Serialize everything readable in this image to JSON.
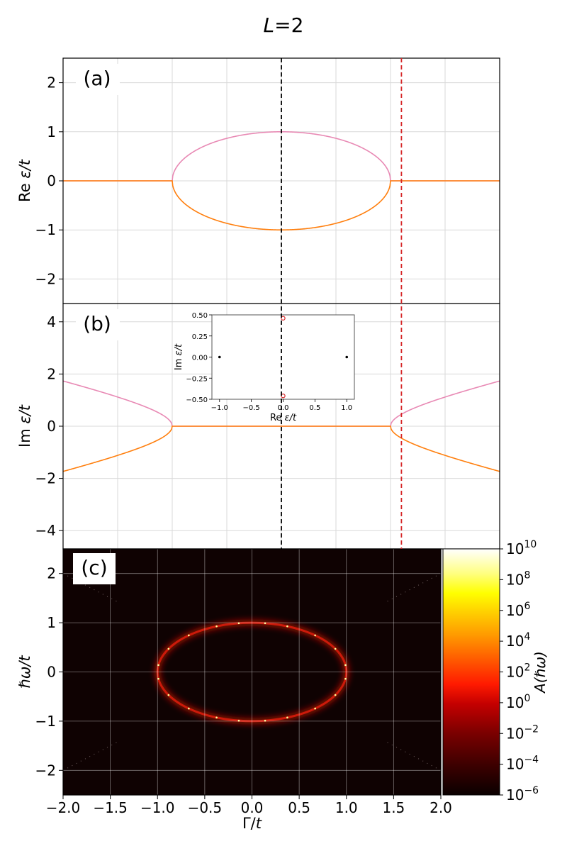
{
  "figure": {
    "suptitle": "L=2"
  },
  "colors": {
    "upper_branch": "#e889b4",
    "lower_branch": "#ff7f0e",
    "vline_black": "#000000",
    "vline_red": "#d62728",
    "grid": "#d9d9d9",
    "heatmap_bg": "#0f0202",
    "heatmap_ring": "#cc1a0a",
    "heatmap_peak": "#ffff99",
    "inset_black_points": "#000000",
    "inset_red_points": "#d62728"
  },
  "chart_data": [
    {
      "id": "a",
      "type": "line",
      "panel_label": "(a)",
      "xlabel": "",
      "ylabel": "Re ε/t",
      "xlim": [
        -2,
        2
      ],
      "ylim": [
        -2.5,
        2.5
      ],
      "y_ticks": [
        -2,
        -1,
        0,
        1,
        2
      ],
      "grid": true,
      "x_gridlines": [
        -1.5,
        -1.0,
        -0.5,
        0.0,
        0.5,
        1.0,
        1.5
      ],
      "exceptional_points": [
        -1,
        1
      ],
      "vlines": [
        {
          "x": 0.0,
          "style": "dashed",
          "color": "black"
        },
        {
          "x": 1.1,
          "style": "dashed",
          "color": "red"
        }
      ],
      "series": [
        {
          "formula": "Re(+sqrt(1-Γ²))",
          "color": "upper_branch"
        },
        {
          "formula": "Re(-sqrt(1-Γ²))",
          "color": "lower_branch"
        }
      ]
    },
    {
      "id": "b",
      "type": "line",
      "panel_label": "(b)",
      "xlabel": "",
      "ylabel": "Im ε/t",
      "xlim": [
        -2,
        2
      ],
      "ylim": [
        -4.7,
        4.7
      ],
      "y_ticks": [
        -4,
        -2,
        0,
        2,
        4
      ],
      "grid": true,
      "vlines": [
        {
          "x": 0.0,
          "style": "dashed",
          "color": "black"
        },
        {
          "x": 1.1,
          "style": "dashed",
          "color": "red"
        }
      ],
      "series": [
        {
          "formula": "Im(+sqrt(1-Γ²))",
          "color": "upper_branch"
        },
        {
          "formula": "Im(-sqrt(1-Γ²))",
          "color": "lower_branch"
        }
      ],
      "inset": {
        "type": "scatter",
        "xlabel": "Re ε/t",
        "ylabel": "Im ε/t",
        "xlim": [
          -1.12,
          1.12
        ],
        "ylim": [
          -0.5,
          0.5
        ],
        "x_ticks": [
          -1.0,
          -0.5,
          0.0,
          0.5,
          1.0
        ],
        "x_tick_labels": [
          "−1.0",
          "−0.5",
          "0.0",
          "0.5",
          "1.0"
        ],
        "y_ticks": [
          0.5,
          0.25,
          0.0,
          -0.25,
          -0.5
        ],
        "y_tick_labels": [
          "0.50",
          "0.25",
          "0.00",
          "−0.25",
          "−0.50"
        ],
        "series": [
          {
            "points": [
              [
                -1.0,
                0.0
              ],
              [
                1.0,
                0.0
              ]
            ],
            "marker": "filled",
            "color": "inset_black_points"
          },
          {
            "points": [
              [
                0.0,
                0.46
              ],
              [
                0.0,
                -0.46
              ]
            ],
            "marker": "open",
            "color": "inset_red_points"
          }
        ]
      }
    },
    {
      "id": "c",
      "type": "heatmap",
      "panel_label": "(c)",
      "xlabel": "Γ/t",
      "ylabel": "ℏω/t",
      "xlim": [
        -2,
        2
      ],
      "ylim": [
        -2.5,
        2.5
      ],
      "x_ticks": [
        -2.0,
        -1.5,
        -1.0,
        -0.5,
        0.0,
        0.5,
        1.0,
        1.5,
        2.0
      ],
      "x_tick_labels": [
        "−2.0",
        "−1.5",
        "−1.0",
        "−0.5",
        "0.0",
        "0.5",
        "1.0",
        "1.5",
        "2.0"
      ],
      "y_ticks": [
        -2,
        -1,
        0,
        1,
        2
      ],
      "grid": true,
      "feature": "ellipse Γ² + (ℏω)² = 1 with peaks along the ring",
      "peak_angles_deg": [
        8,
        28,
        48,
        68,
        82,
        98,
        112,
        132,
        152,
        172,
        188,
        208,
        228,
        248,
        262,
        278,
        292,
        312,
        332,
        352
      ],
      "faint_diagonals": [
        {
          "from": [
            -2.0,
            2.0
          ],
          "to": [
            -1.4,
            1.4
          ]
        },
        {
          "from": [
            2.0,
            2.0
          ],
          "to": [
            1.4,
            1.4
          ]
        },
        {
          "from": [
            -2.0,
            -2.0
          ],
          "to": [
            -1.4,
            -1.4
          ]
        },
        {
          "from": [
            2.0,
            -2.0
          ],
          "to": [
            1.4,
            -1.4
          ]
        }
      ],
      "colorbar": {
        "label": "A(ℏω)",
        "scale": "log",
        "range_exponents": [
          -6,
          10
        ],
        "tick_exponents": [
          10,
          8,
          6,
          4,
          2,
          0,
          -2,
          -4,
          -6
        ],
        "tick_base": "10",
        "tick_exponent_labels": [
          "10",
          "8",
          "6",
          "4",
          "2",
          "0",
          "−2",
          "−4",
          "−6"
        ],
        "colormap": "hot"
      }
    }
  ]
}
